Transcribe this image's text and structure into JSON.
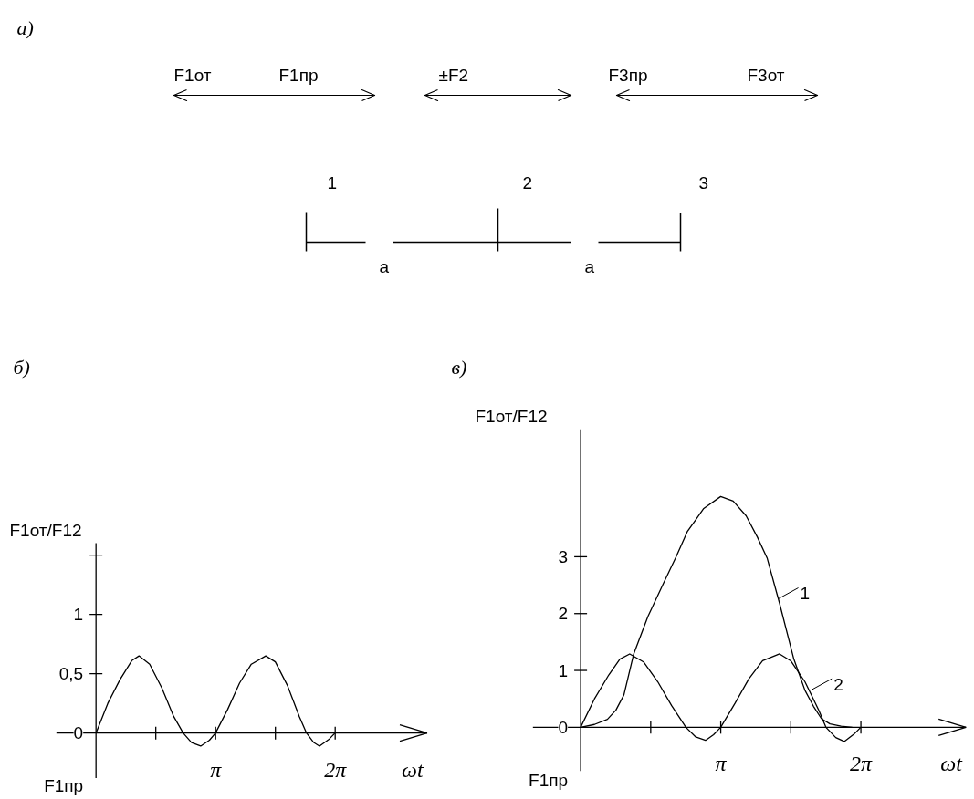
{
  "chart_data": [
    {
      "type": "other",
      "title": "а)",
      "annotations": [
        "F1от",
        "F1пр",
        "±F2",
        "F3пр",
        "F3от",
        "1",
        "2",
        "3",
        "a",
        "a"
      ]
    },
    {
      "type": "line",
      "title": "б)",
      "xlabel": "ωt",
      "ylabel": "F1от/F12",
      "color": "#000000",
      "xlim": [
        -1.04,
        8.7
      ],
      "ylim": [
        -0.38,
        1.6
      ],
      "xticks": [
        {
          "value": 1.5708,
          "label": null
        },
        {
          "value": 3.1416,
          "label": "π"
        },
        {
          "value": 4.7124,
          "label": null
        },
        {
          "value": 6.2832,
          "label": "2π"
        }
      ],
      "yticks": [
        0,
        {
          "value": 0.5,
          "label": "0,5"
        },
        1,
        {
          "value": 1.5,
          "label": null
        }
      ],
      "annotations": [
        "F1пр"
      ],
      "series": [
        {
          "x": [
            0,
            0.31,
            0.63,
            0.94,
            1.13,
            1.41,
            1.73,
            2.04,
            2.29,
            2.51,
            2.75,
            2.98,
            3.14,
            3.46,
            3.77,
            4.08,
            4.46,
            4.71,
            5.03,
            5.34,
            5.53,
            5.72,
            5.87,
            6.13,
            6.28
          ],
          "values": [
            0,
            0.25,
            0.45,
            0.61,
            0.65,
            0.58,
            0.38,
            0.14,
            0,
            -0.08,
            -0.11,
            -0.06,
            0,
            0.2,
            0.42,
            0.58,
            0.65,
            0.6,
            0.4,
            0.14,
            0,
            -0.08,
            -0.11,
            -0.05,
            0
          ]
        }
      ]
    },
    {
      "type": "line",
      "title": "в)",
      "xlabel": "ωt",
      "ylabel": "F1от/F12",
      "color": "#000000",
      "xlim": [
        -1.07,
        8.64
      ],
      "ylim": [
        -0.77,
        5.24
      ],
      "xticks": [
        {
          "value": 1.5708,
          "label": null
        },
        {
          "value": 3.1416,
          "label": "π"
        },
        {
          "value": 4.7124,
          "label": null
        },
        {
          "value": 6.2832,
          "label": "2π"
        }
      ],
      "yticks": [
        0,
        1,
        2,
        3
      ],
      "annotations": [
        "F1пр",
        {
          "text": "1",
          "x": 4.43,
          "y": 2.26
        },
        {
          "text": "2",
          "x": 5.18,
          "y": 0.66
        }
      ],
      "series": [
        {
          "x": [
            0,
            0.31,
            0.6,
            0.79,
            0.97,
            1.19,
            1.51,
            1.85,
            2.14,
            2.39,
            2.76,
            3.14,
            3.42,
            3.71,
            3.96,
            4.18,
            4.46,
            4.78,
            5.03,
            5.22,
            5.4,
            5.59,
            5.84,
            6.09
          ],
          "values": [
            0,
            0.05,
            0.14,
            0.3,
            0.57,
            1.29,
            1.95,
            2.52,
            3.0,
            3.44,
            3.85,
            4.06,
            3.98,
            3.72,
            3.35,
            2.98,
            2.18,
            1.2,
            0.65,
            0.37,
            0.15,
            0.06,
            0.02,
            0
          ]
        },
        {
          "x": [
            0,
            0.31,
            0.63,
            0.88,
            1.1,
            1.41,
            1.73,
            2.04,
            2.36,
            2.58,
            2.8,
            2.98,
            3.14,
            3.46,
            3.77,
            4.08,
            4.46,
            4.71,
            5.03,
            5.34,
            5.5,
            5.72,
            5.91,
            6.13,
            6.28
          ],
          "values": [
            0,
            0.5,
            0.92,
            1.2,
            1.29,
            1.15,
            0.8,
            0.38,
            0,
            -0.17,
            -0.23,
            -0.13,
            0,
            0.42,
            0.85,
            1.17,
            1.29,
            1.17,
            0.8,
            0.3,
            0,
            -0.18,
            -0.25,
            -0.12,
            0
          ]
        }
      ]
    }
  ]
}
